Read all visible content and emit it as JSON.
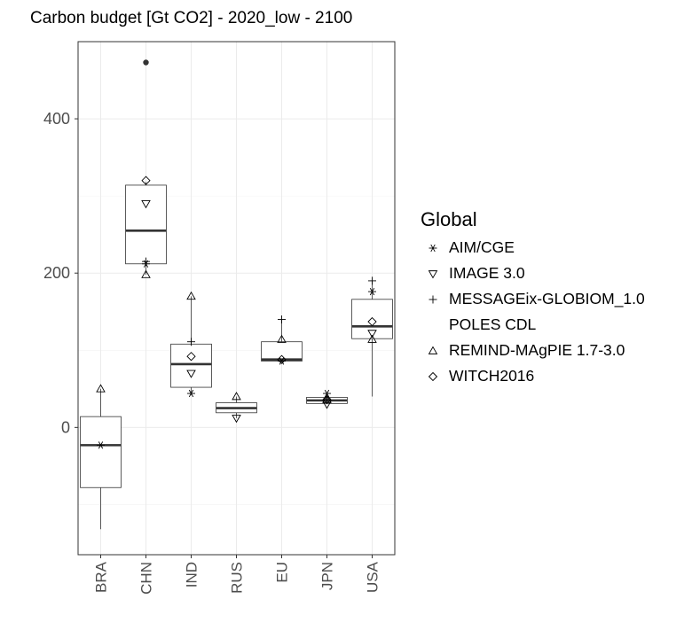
{
  "chart_data": {
    "type": "boxplot",
    "title": "Carbon budget [Gt CO2] - 2020_low - 2100",
    "xlabel": "",
    "ylabel": "",
    "ylim": [
      -165,
      500
    ],
    "yticks": [
      0,
      200,
      400
    ],
    "grid": true,
    "legend_title": "Global",
    "legend_placement": "right",
    "categories": [
      "BRA",
      "CHN",
      "IND",
      "RUS",
      "EU",
      "JPN",
      "USA"
    ],
    "boxes": [
      {
        "category": "BRA",
        "whisker_low": -132,
        "q1": -78,
        "median": -23,
        "q3": 14,
        "whisker_high": 50,
        "outliers": []
      },
      {
        "category": "CHN",
        "whisker_low": 198,
        "q1": 212,
        "median": 255,
        "q3": 314,
        "whisker_high": 318,
        "outliers": [
          473
        ]
      },
      {
        "category": "IND",
        "whisker_low": 42,
        "q1": 52,
        "median": 82,
        "q3": 108,
        "whisker_high": 170,
        "outliers": []
      },
      {
        "category": "RUS",
        "whisker_low": 12,
        "q1": 19,
        "median": 25,
        "q3": 32,
        "whisker_high": 40,
        "outliers": []
      },
      {
        "category": "EU",
        "whisker_low": 85,
        "q1": 86,
        "median": 88,
        "q3": 111,
        "whisker_high": 140,
        "outliers": []
      },
      {
        "category": "JPN",
        "whisker_low": 30,
        "q1": 31,
        "median": 35,
        "q3": 39,
        "whisker_high": 45,
        "outliers": []
      },
      {
        "category": "USA",
        "whisker_low": 40,
        "q1": 115,
        "median": 131,
        "q3": 166,
        "whisker_high": 190,
        "outliers": []
      }
    ],
    "series": [
      {
        "name": "AIM/CGE",
        "symbol": "asterisk",
        "points": [
          {
            "x": "BRA",
            "y": -23
          },
          {
            "x": "CHN",
            "y": 212
          },
          {
            "x": "IND",
            "y": 44
          },
          {
            "x": "EU",
            "y": 86
          },
          {
            "x": "JPN",
            "y": 44
          },
          {
            "x": "USA",
            "y": 176
          }
        ]
      },
      {
        "name": "IMAGE 3.0",
        "symbol": "triangle-down",
        "points": [
          {
            "x": "CHN",
            "y": 290
          },
          {
            "x": "IND",
            "y": 70
          },
          {
            "x": "RUS",
            "y": 12
          },
          {
            "x": "JPN",
            "y": 30
          },
          {
            "x": "USA",
            "y": 122
          }
        ]
      },
      {
        "name": "MESSAGEix-GLOBIOM_1.0",
        "symbol": "plus",
        "points": [
          {
            "x": "CHN",
            "y": 215
          },
          {
            "x": "IND",
            "y": 111
          },
          {
            "x": "EU",
            "y": 140
          },
          {
            "x": "JPN",
            "y": 37
          },
          {
            "x": "USA",
            "y": 190
          }
        ]
      },
      {
        "name": "POLES CDL",
        "symbol": "none",
        "points": []
      },
      {
        "name": "REMIND-MAgPIE 1.7-3.0",
        "symbol": "triangle-up",
        "points": [
          {
            "x": "BRA",
            "y": 50
          },
          {
            "x": "CHN",
            "y": 198
          },
          {
            "x": "IND",
            "y": 170
          },
          {
            "x": "RUS",
            "y": 40
          },
          {
            "x": "EU",
            "y": 114
          },
          {
            "x": "JPN",
            "y": 36
          },
          {
            "x": "USA",
            "y": 114
          }
        ]
      },
      {
        "name": "WITCH2016",
        "symbol": "diamond",
        "points": [
          {
            "x": "CHN",
            "y": 320
          },
          {
            "x": "IND",
            "y": 92
          },
          {
            "x": "EU",
            "y": 88
          },
          {
            "x": "JPN",
            "y": 36
          },
          {
            "x": "USA",
            "y": 137
          }
        ]
      }
    ]
  }
}
